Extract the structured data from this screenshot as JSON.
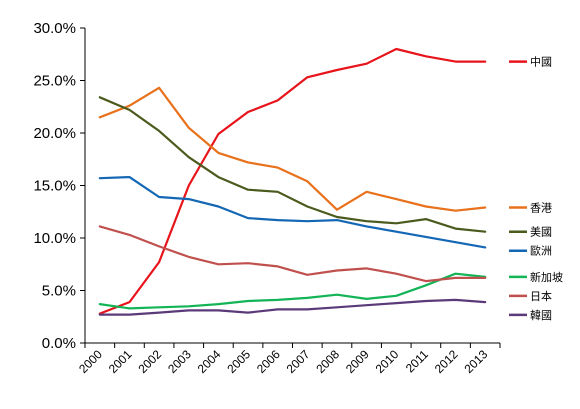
{
  "chart_data": {
    "type": "line",
    "title": "",
    "xlabel": "",
    "ylabel": "",
    "ylim": [
      0,
      0.3
    ],
    "ytick_labels": [
      "0.0%",
      "5.0%",
      "10.0%",
      "15.0%",
      "20.0%",
      "25.0%",
      "30.0%"
    ],
    "categories": [
      "2000",
      "2001",
      "2002",
      "2003",
      "2004",
      "2005",
      "2006",
      "2007",
      "2008",
      "2009",
      "2010",
      "2011",
      "2012",
      "2013"
    ],
    "grid": false,
    "legend_position": "right",
    "series": [
      {
        "name": "中國",
        "color": "#e8141b",
        "values": [
          0.028,
          0.039,
          0.077,
          0.15,
          0.199,
          0.22,
          0.231,
          0.253,
          0.26,
          0.266,
          0.28,
          0.273,
          0.268,
          0.268
        ]
      },
      {
        "name": "香港",
        "color": "#e8711c",
        "values": [
          0.215,
          0.226,
          0.243,
          0.205,
          0.181,
          0.172,
          0.167,
          0.154,
          0.127,
          0.144,
          0.137,
          0.13,
          0.126,
          0.129
        ]
      },
      {
        "name": "美國",
        "color": "#4b5a1d",
        "values": [
          0.234,
          0.222,
          0.202,
          0.177,
          0.158,
          0.146,
          0.144,
          0.13,
          0.12,
          0.116,
          0.114,
          0.118,
          0.109,
          0.106
        ]
      },
      {
        "name": "歐洲",
        "color": "#1467b4",
        "values": [
          0.157,
          0.158,
          0.139,
          0.137,
          0.13,
          0.119,
          0.117,
          0.116,
          0.117,
          0.111,
          0.106,
          0.101,
          0.096,
          0.091
        ]
      },
      {
        "name": "新加坡",
        "color": "#13b456",
        "values": [
          0.037,
          0.033,
          0.034,
          0.035,
          0.037,
          0.04,
          0.041,
          0.043,
          0.046,
          0.042,
          0.045,
          0.055,
          0.066,
          0.063
        ]
      },
      {
        "name": "日本",
        "color": "#c0504d",
        "values": [
          0.111,
          0.103,
          0.092,
          0.082,
          0.075,
          0.076,
          0.073,
          0.065,
          0.069,
          0.071,
          0.066,
          0.059,
          0.062,
          0.062
        ]
      },
      {
        "name": "韓國",
        "color": "#5b3a7a",
        "values": [
          0.027,
          0.027,
          0.029,
          0.031,
          0.031,
          0.029,
          0.032,
          0.032,
          0.034,
          0.036,
          0.038,
          0.04,
          0.041,
          0.039
        ]
      }
    ]
  }
}
